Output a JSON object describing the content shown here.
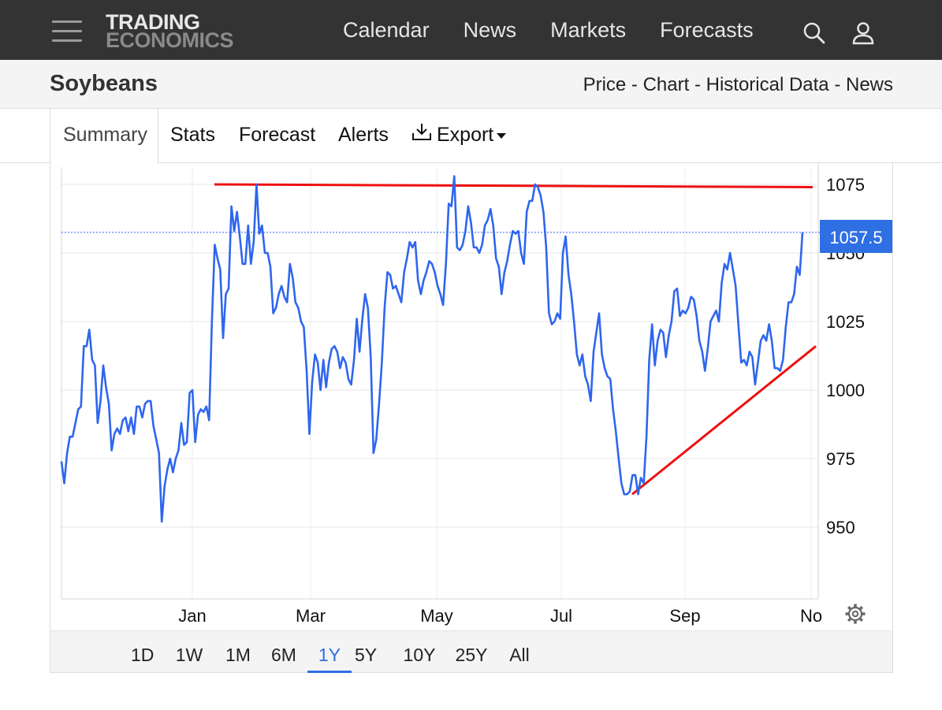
{
  "brand": {
    "line1": "TRADING",
    "line2": "ECONOMICS"
  },
  "nav": {
    "calendar": "Calendar",
    "news": "News",
    "markets": "Markets",
    "forecasts": "Forecasts"
  },
  "header": {
    "title": "Soybeans",
    "crumbs": {
      "price": "Price",
      "chart": "Chart",
      "historical": "Historical Data",
      "news": "News",
      "sep": " - "
    }
  },
  "tabs": {
    "summary": "Summary",
    "stats": "Stats",
    "forecast": "Forecast",
    "alerts": "Alerts",
    "export": "Export"
  },
  "ranges": [
    "1D",
    "1W",
    "1M",
    "6M",
    "1Y",
    "5Y",
    "10Y",
    "25Y",
    "All"
  ],
  "active_range": "1Y",
  "icons": {
    "menu": "hamburger-icon",
    "search": "search-icon",
    "user": "user-icon",
    "download": "download-icon",
    "settings": "gear-icon"
  },
  "colors": {
    "series": "#2f66ee",
    "trendline": "#ee1111",
    "accent": "#2f6fe4",
    "topbar": "#333333"
  },
  "chart_data": {
    "type": "line",
    "series_name": "Soybeans",
    "last_value": "1057.5",
    "ylim": [
      920,
      1080
    ],
    "yticks": [
      950,
      975,
      1000,
      1025,
      1050,
      1075
    ],
    "xticks": [
      "Jan",
      "Mar",
      "May",
      "Jul",
      "Sep",
      "No"
    ],
    "grid": true,
    "values": [
      974,
      966,
      977,
      983,
      983,
      988,
      993,
      994,
      1016,
      1016,
      1022,
      1011,
      1009,
      988,
      996,
      1009,
      1001,
      995,
      978,
      984,
      986,
      984,
      989,
      990,
      985,
      990,
      984,
      994,
      994,
      990,
      995,
      996,
      996,
      987,
      982,
      977,
      952,
      965,
      971,
      975,
      970,
      975,
      978,
      988,
      980,
      981,
      999,
      1000,
      981,
      991,
      993,
      992,
      994,
      989,
      1025,
      1053,
      1048,
      1044,
      1019,
      1035,
      1037,
      1067,
      1058,
      1065,
      1056,
      1046,
      1046,
      1060,
      1046,
      1054,
      1075,
      1057,
      1060,
      1050,
      1050,
      1045,
      1028,
      1030,
      1035,
      1038,
      1034,
      1032,
      1046,
      1041,
      1032,
      1030,
      1025,
      1023,
      1007,
      984,
      1003,
      1013,
      1010,
      1000,
      1011,
      1001,
      1010,
      1015,
      1016,
      1014,
      1008,
      1012,
      1010,
      1004,
      1002,
      1011,
      1026,
      1014,
      1026,
      1035,
      1030,
      1012,
      977,
      982,
      995,
      1010,
      1030,
      1043,
      1042,
      1037,
      1038,
      1035,
      1032,
      1043,
      1048,
      1054,
      1052,
      1054,
      1040,
      1035,
      1040,
      1043,
      1047,
      1046,
      1043,
      1038,
      1035,
      1031,
      1046,
      1068,
      1067,
      1078,
      1052,
      1051,
      1053,
      1058,
      1067,
      1061,
      1052,
      1052,
      1050,
      1053,
      1060,
      1062,
      1066,
      1060,
      1048,
      1045,
      1035,
      1043,
      1047,
      1053,
      1058,
      1057,
      1058,
      1050,
      1046,
      1065,
      1069,
      1069,
      1075,
      1074,
      1071,
      1065,
      1052,
      1028,
      1024,
      1025,
      1028,
      1026,
      1050,
      1056,
      1042,
      1035,
      1025,
      1013,
      1009,
      1013,
      1005,
      1002,
      996,
      1014,
      1021,
      1028,
      1013,
      1008,
      1005,
      1004,
      993,
      985,
      975,
      966,
      962,
      962,
      963,
      969,
      969,
      962,
      968,
      966,
      983,
      1011,
      1024,
      1009,
      1018,
      1022,
      1021,
      1012,
      1020,
      1025,
      1036,
      1037,
      1027,
      1029,
      1028,
      1030,
      1034,
      1033,
      1027,
      1018,
      1014,
      1007,
      1015,
      1025,
      1027,
      1029,
      1025,
      1039,
      1046,
      1044,
      1050,
      1044,
      1038,
      1024,
      1010,
      1011,
      1009,
      1014,
      1012,
      1002,
      1010,
      1018,
      1020,
      1018,
      1024,
      1018,
      1008,
      1008,
      1007,
      1011,
      1023,
      1032,
      1032,
      1035,
      1045,
      1042,
      1057.5
    ],
    "trendlines": [
      {
        "from": [
          "Jan",
          1075
        ],
        "to": [
          "No",
          1074
        ]
      },
      {
        "from": [
          "Aug",
          962
        ],
        "to": [
          "No",
          1016
        ]
      }
    ]
  }
}
